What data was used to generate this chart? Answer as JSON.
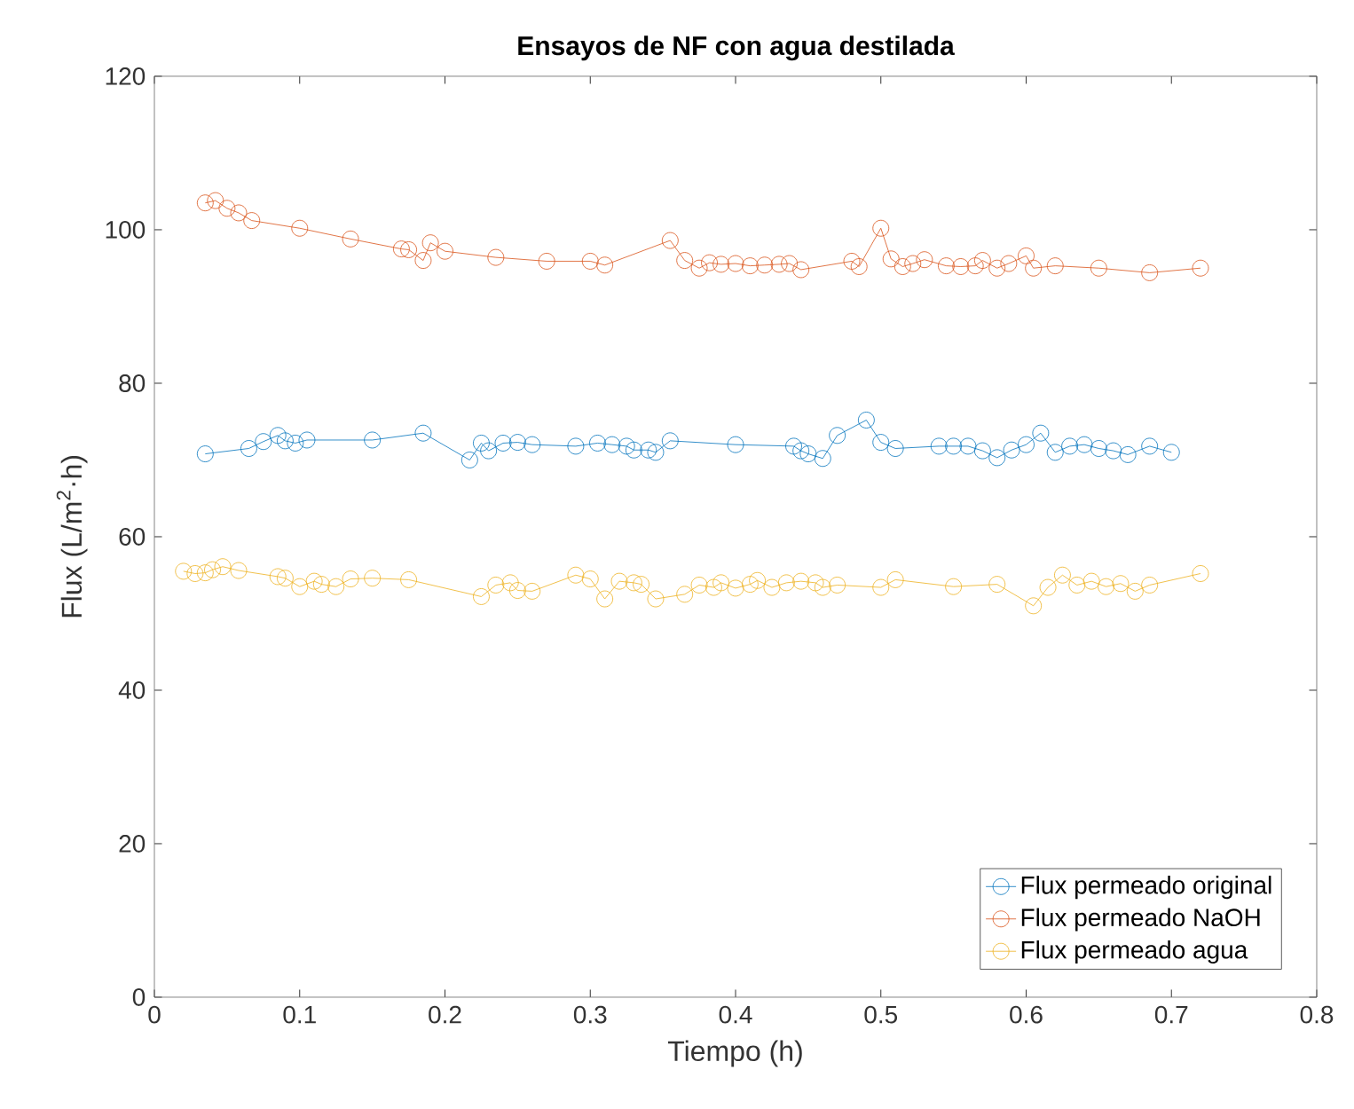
{
  "chart_data": {
    "type": "line",
    "title": "Ensayos de NF con agua destilada",
    "xlabel": "Tiempo (h)",
    "ylabel": "Flux (L/m$^{2}$·h)",
    "xlim": [
      0,
      0.8
    ],
    "xticks": [
      0,
      0.1,
      0.2,
      0.3,
      0.4,
      0.5,
      0.6,
      0.7,
      0.8
    ],
    "ylim": [
      0,
      120
    ],
    "yticks": [
      0,
      20,
      40,
      60,
      80,
      100,
      120
    ],
    "grid": false,
    "legend": "bottom right",
    "marker": "circle",
    "line_style": "solid",
    "series": [
      {
        "name": "Flux permeado original",
        "color": "#0072bd",
        "x": [
          0.035,
          0.065,
          0.075,
          0.085,
          0.09,
          0.097,
          0.105,
          0.15,
          0.185,
          0.217,
          0.225,
          0.23,
          0.24,
          0.25,
          0.26,
          0.29,
          0.305,
          0.315,
          0.325,
          0.33,
          0.34,
          0.345,
          0.355,
          0.4,
          0.44,
          0.445,
          0.45,
          0.46,
          0.47,
          0.49,
          0.5,
          0.51,
          0.54,
          0.55,
          0.56,
          0.57,
          0.58,
          0.59,
          0.6,
          0.61,
          0.62,
          0.63,
          0.64,
          0.65,
          0.66,
          0.67,
          0.685,
          0.7
        ],
        "values": [
          70.8,
          71.5,
          72.4,
          73.2,
          72.5,
          72.2,
          72.6,
          72.6,
          73.5,
          70,
          72.2,
          71.2,
          72.2,
          72.3,
          72,
          71.8,
          72.2,
          72,
          71.8,
          71.3,
          71.3,
          71,
          72.5,
          72,
          71.8,
          71.2,
          70.8,
          70.2,
          73.2,
          75.2,
          72.3,
          71.5,
          71.8,
          71.8,
          71.8,
          71.2,
          70.3,
          71.3,
          72,
          73.5,
          71,
          71.8,
          72,
          71.5,
          71.2,
          70.7,
          71.8,
          71
        ]
      },
      {
        "name": "Flux permeado NaOH",
        "color": "#d95319",
        "x": [
          0.035,
          0.042,
          0.05,
          0.058,
          0.067,
          0.1,
          0.135,
          0.17,
          0.175,
          0.185,
          0.19,
          0.2,
          0.235,
          0.27,
          0.3,
          0.31,
          0.355,
          0.365,
          0.375,
          0.382,
          0.39,
          0.4,
          0.41,
          0.42,
          0.43,
          0.437,
          0.445,
          0.48,
          0.485,
          0.5,
          0.507,
          0.515,
          0.522,
          0.53,
          0.545,
          0.555,
          0.565,
          0.57,
          0.58,
          0.588,
          0.6,
          0.605,
          0.62,
          0.65,
          0.685,
          0.72
        ],
        "values": [
          103.5,
          103.8,
          102.8,
          102.2,
          101.2,
          100.2,
          98.8,
          97.5,
          97.4,
          96,
          98.3,
          97.2,
          96.4,
          95.9,
          95.9,
          95.4,
          98.6,
          96,
          95,
          95.7,
          95.5,
          95.6,
          95.3,
          95.4,
          95.5,
          95.6,
          94.8,
          95.9,
          95.2,
          100.2,
          96.2,
          95.2,
          95.6,
          96.1,
          95.3,
          95.2,
          95.3,
          96,
          95,
          95.6,
          96.6,
          95,
          95.3,
          95,
          94.4,
          95
        ]
      },
      {
        "name": "Flux permeado agua",
        "color": "#edb120",
        "x": [
          0.02,
          0.028,
          0.035,
          0.04,
          0.047,
          0.058,
          0.085,
          0.09,
          0.1,
          0.11,
          0.115,
          0.125,
          0.135,
          0.15,
          0.175,
          0.225,
          0.235,
          0.245,
          0.25,
          0.26,
          0.29,
          0.3,
          0.31,
          0.32,
          0.33,
          0.335,
          0.345,
          0.365,
          0.375,
          0.385,
          0.39,
          0.4,
          0.41,
          0.415,
          0.425,
          0.435,
          0.445,
          0.455,
          0.46,
          0.47,
          0.5,
          0.51,
          0.55,
          0.58,
          0.605,
          0.615,
          0.625,
          0.635,
          0.645,
          0.655,
          0.665,
          0.675,
          0.685,
          0.72
        ],
        "values": [
          55.5,
          55.2,
          55.3,
          55.7,
          56.1,
          55.6,
          54.8,
          54.6,
          53.5,
          54.2,
          53.8,
          53.5,
          54.5,
          54.6,
          54.4,
          52.2,
          53.7,
          54,
          53,
          52.9,
          55,
          54.5,
          51.9,
          54.2,
          54,
          53.8,
          51.9,
          52.5,
          53.7,
          53.4,
          54,
          53.3,
          53.8,
          54.3,
          53.4,
          54,
          54.2,
          54,
          53.4,
          53.7,
          53.4,
          54.4,
          53.5,
          53.8,
          51,
          53.4,
          55,
          53.7,
          54.2,
          53.5,
          53.9,
          52.9,
          53.7,
          55.2
        ]
      }
    ]
  }
}
